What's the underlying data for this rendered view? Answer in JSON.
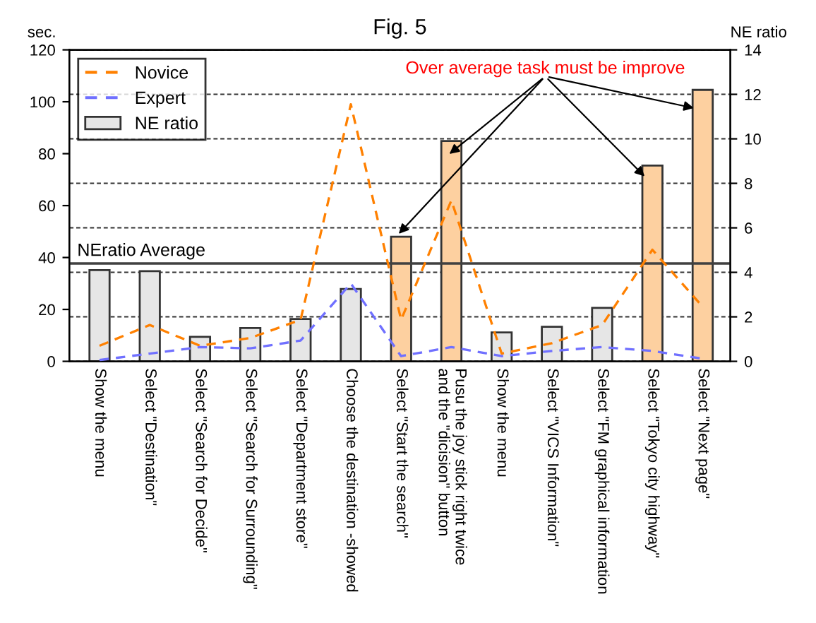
{
  "chart_data": {
    "type": "line",
    "title": "Fig. 5",
    "ylabel": "sec.",
    "y2label": "NE ratio",
    "categories": [
      "Show the menu",
      "Select \"Destination\"",
      "Select \"Search for Decide\"",
      "Select \"Search for Surrounding\"",
      "Select \"Department store\"",
      "Choose the destination -showed",
      "Select \"Start the search\"",
      "Pusu the joy stick right twice\nand the \"dicision\" button",
      "Show the menu",
      "Select \"VICS Information\"",
      "Select \"FM graphical information",
      "Select \"Tokyo city highway\"",
      "Select \"Next page\""
    ],
    "series": [
      {
        "name": "Novice",
        "color": "#ff8000",
        "line_style": "dashed",
        "values": [
          6,
          14,
          6,
          9,
          16,
          99,
          16,
          62,
          3,
          7,
          14,
          43,
          21
        ]
      },
      {
        "name": "Expert",
        "type": "line",
        "color": "#7070ff",
        "line_style": "dashed",
        "values": [
          0.5,
          3,
          5.5,
          5,
          8,
          30,
          2,
          5.5,
          2,
          4,
          5.5,
          4,
          1
        ]
      },
      {
        "name": "NE ratio",
        "type": "bar",
        "axis": "y2",
        "color": "#e6e6e6",
        "colors": [
          "#e6e6e6",
          "#e6e6e6",
          "#e6e6e6",
          "#e6e6e6",
          "#e6e6e6",
          "#e6e6e6",
          "#fdd0a0",
          "#fdd0a0",
          "#e6e6e6",
          "#e6e6e6",
          "#e6e6e6",
          "#fdd0a0",
          "#fdd0a0"
        ],
        "values": [
          4.1,
          4.05,
          1.1,
          1.5,
          1.9,
          3.25,
          5.6,
          9.9,
          1.3,
          1.55,
          2.4,
          8.8,
          12.2
        ]
      }
    ],
    "ylim": [
      0,
      120
    ],
    "yticks": [
      0,
      20,
      40,
      60,
      80,
      100,
      120
    ],
    "y2lim": [
      0,
      14
    ],
    "y2ticks": [
      0,
      2,
      4,
      6,
      8,
      10,
      12,
      14
    ],
    "ref_lines": [
      {
        "axis": "y2",
        "value": 4.4,
        "label": "NEratio Average",
        "color": "#404040"
      }
    ],
    "annotations": [
      {
        "text": "Over average task must be improve",
        "x": "Select \"Start the search\"",
        "y": 48
      }
    ],
    "grid": "y",
    "legend": "top left"
  }
}
